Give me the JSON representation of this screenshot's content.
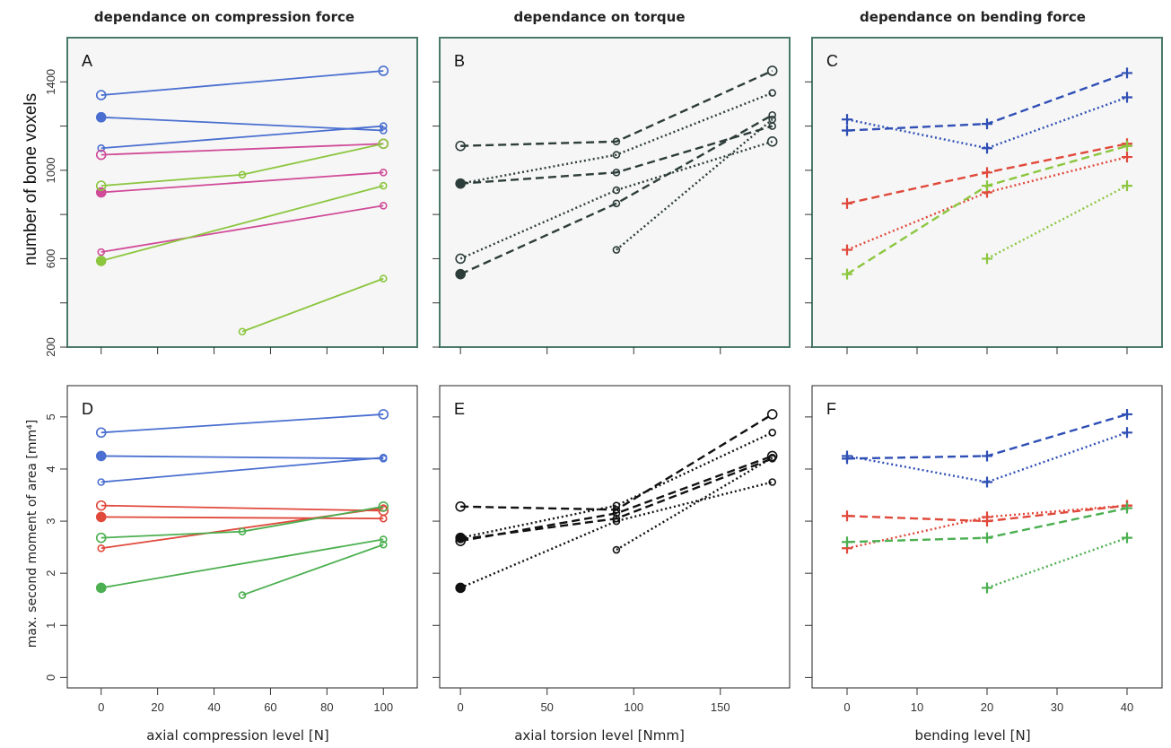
{
  "column_titles": [
    "dependance on compression force",
    "dependance on torque",
    "dependance on bending force"
  ],
  "x_axis_titles": [
    "axial compression level [N]",
    "axial torsion level [Nmm]",
    "bending level [N]"
  ],
  "y_axis_titles": [
    "number of bone voxels",
    "max. second moment of area [mm⁴]"
  ],
  "colors": {
    "blue": "#4a6fd0",
    "pink": "#d04b98",
    "lightgreen": "#8cc63f",
    "darkgray": "#2d3d3a",
    "red": "#e0493b",
    "green": "#4caf50",
    "black": "#111111",
    "navy": "#2f4fb5"
  },
  "chart_data": [
    {
      "panel": "A",
      "type": "line",
      "ylim": [
        200,
        1600
      ],
      "yticks": [
        200,
        600,
        1000,
        1400
      ],
      "xlim": [
        -12,
        112
      ],
      "xticks": [
        0,
        20,
        40,
        60,
        80,
        100
      ],
      "series": [
        {
          "color": "blue",
          "points": [
            [
              0,
              1340
            ],
            [
              100,
              1450
            ]
          ]
        },
        {
          "color": "blue",
          "points": [
            [
              0,
              1240
            ],
            [
              100,
              1180
            ]
          ]
        },
        {
          "color": "blue",
          "points": [
            [
              0,
              1100
            ],
            [
              100,
              1200
            ]
          ]
        },
        {
          "color": "pink",
          "points": [
            [
              0,
              1070
            ],
            [
              100,
              1120
            ]
          ]
        },
        {
          "color": "pink",
          "points": [
            [
              0,
              900
            ],
            [
              100,
              990
            ]
          ]
        },
        {
          "color": "pink",
          "points": [
            [
              0,
              630
            ],
            [
              100,
              840
            ]
          ]
        },
        {
          "color": "lightgreen",
          "points": [
            [
              0,
              930
            ],
            [
              50,
              980
            ],
            [
              100,
              1120
            ]
          ]
        },
        {
          "color": "lightgreen",
          "points": [
            [
              0,
              590
            ],
            [
              100,
              930
            ]
          ]
        },
        {
          "color": "lightgreen",
          "points": [
            [
              50,
              270
            ],
            [
              100,
              510
            ]
          ]
        }
      ]
    },
    {
      "panel": "B",
      "type": "line",
      "ylim": [
        200,
        1600
      ],
      "xlim": [
        -12,
        190
      ],
      "xticks": [
        0,
        50,
        100,
        150
      ],
      "series": [
        {
          "color": "darkgray",
          "dash": "dashed",
          "points": [
            [
              0,
              1110
            ],
            [
              90,
              1130
            ],
            [
              180,
              1450
            ]
          ]
        },
        {
          "color": "darkgray",
          "dash": "dotted",
          "points": [
            [
              0,
              940
            ],
            [
              90,
              1070
            ],
            [
              180,
              1350
            ]
          ]
        },
        {
          "color": "darkgray",
          "dash": "dashed",
          "points": [
            [
              0,
              940
            ],
            [
              90,
              990
            ],
            [
              180,
              1200
            ]
          ]
        },
        {
          "color": "darkgray",
          "dash": "dotted",
          "points": [
            [
              0,
              600
            ],
            [
              90,
              910
            ],
            [
              180,
              1130
            ]
          ]
        },
        {
          "color": "darkgray",
          "dash": "dashed",
          "points": [
            [
              0,
              530
            ],
            [
              90,
              850
            ],
            [
              180,
              1250
            ]
          ]
        },
        {
          "color": "darkgray",
          "dash": "dotted",
          "points": [
            [
              90,
              640
            ],
            [
              180,
              1230
            ]
          ]
        }
      ]
    },
    {
      "panel": "C",
      "type": "line",
      "ylim": [
        200,
        1600
      ],
      "xlim": [
        -5,
        45
      ],
      "xticks": [
        0,
        10,
        20,
        30,
        40
      ],
      "series": [
        {
          "color": "navy",
          "dash": "dashed",
          "points": [
            [
              0,
              1180
            ],
            [
              20,
              1210
            ],
            [
              40,
              1440
            ]
          ]
        },
        {
          "color": "navy",
          "dash": "dotted",
          "points": [
            [
              0,
              1230
            ],
            [
              20,
              1100
            ],
            [
              40,
              1330
            ]
          ]
        },
        {
          "color": "red",
          "dash": "dashed",
          "points": [
            [
              0,
              850
            ],
            [
              20,
              990
            ],
            [
              40,
              1120
            ]
          ]
        },
        {
          "color": "red",
          "dash": "dotted",
          "points": [
            [
              0,
              640
            ],
            [
              20,
              900
            ],
            [
              40,
              1060
            ]
          ]
        },
        {
          "color": "lightgreen",
          "dash": "dashed",
          "points": [
            [
              0,
              530
            ],
            [
              20,
              930
            ],
            [
              40,
              1110
            ]
          ]
        },
        {
          "color": "lightgreen",
          "dash": "dotted",
          "points": [
            [
              20,
              600
            ],
            [
              40,
              930
            ]
          ]
        }
      ]
    },
    {
      "panel": "D",
      "type": "line",
      "ylim": [
        -0.2,
        5.6
      ],
      "yticks": [
        0,
        1,
        2,
        3,
        4,
        5
      ],
      "xlim": [
        -12,
        112
      ],
      "xticks": [
        0,
        20,
        40,
        60,
        80,
        100
      ],
      "series": [
        {
          "color": "blue",
          "points": [
            [
              0,
              4.7
            ],
            [
              100,
              5.05
            ]
          ]
        },
        {
          "color": "blue",
          "points": [
            [
              0,
              4.25
            ],
            [
              100,
              4.2
            ]
          ]
        },
        {
          "color": "blue",
          "points": [
            [
              0,
              3.75
            ],
            [
              100,
              4.22
            ]
          ]
        },
        {
          "color": "red",
          "points": [
            [
              0,
              3.3
            ],
            [
              100,
              3.2
            ]
          ]
        },
        {
          "color": "red",
          "points": [
            [
              0,
              3.08
            ],
            [
              100,
              3.05
            ]
          ]
        },
        {
          "color": "red",
          "points": [
            [
              0,
              2.48
            ],
            [
              100,
              3.25
            ]
          ]
        },
        {
          "color": "green",
          "points": [
            [
              0,
              2.68
            ],
            [
              50,
              2.8
            ],
            [
              100,
              3.28
            ]
          ]
        },
        {
          "color": "green",
          "points": [
            [
              0,
              1.72
            ],
            [
              100,
              2.65
            ]
          ]
        },
        {
          "color": "green",
          "points": [
            [
              50,
              1.58
            ],
            [
              100,
              2.55
            ]
          ]
        }
      ]
    },
    {
      "panel": "E",
      "type": "line",
      "ylim": [
        -0.2,
        5.6
      ],
      "xlim": [
        -12,
        190
      ],
      "xticks": [
        0,
        50,
        100,
        150
      ],
      "series": [
        {
          "color": "black",
          "dash": "dashed",
          "points": [
            [
              0,
              3.28
            ],
            [
              90,
              3.22
            ],
            [
              180,
              5.05
            ]
          ]
        },
        {
          "color": "black",
          "dash": "dotted",
          "points": [
            [
              0,
              2.68
            ],
            [
              90,
              3.3
            ],
            [
              180,
              4.7
            ]
          ]
        },
        {
          "color": "black",
          "dash": "dashed",
          "points": [
            [
              0,
              2.65
            ],
            [
              90,
              3.05
            ],
            [
              180,
              4.2
            ]
          ]
        },
        {
          "color": "black",
          "dash": "dashed",
          "points": [
            [
              0,
              2.62
            ],
            [
              90,
              3.15
            ],
            [
              180,
              4.25
            ]
          ]
        },
        {
          "color": "black",
          "dash": "dotted",
          "points": [
            [
              0,
              1.72
            ],
            [
              90,
              3.0
            ],
            [
              180,
              3.75
            ]
          ]
        },
        {
          "color": "black",
          "dash": "dotted",
          "points": [
            [
              90,
              2.45
            ],
            [
              180,
              4.22
            ]
          ]
        }
      ]
    },
    {
      "panel": "F",
      "type": "line",
      "ylim": [
        -0.2,
        5.6
      ],
      "xlim": [
        -5,
        45
      ],
      "xticks": [
        0,
        10,
        20,
        30,
        40
      ],
      "series": [
        {
          "color": "navy",
          "dash": "dashed",
          "points": [
            [
              0,
              4.2
            ],
            [
              20,
              4.25
            ],
            [
              40,
              5.05
            ]
          ]
        },
        {
          "color": "navy",
          "dash": "dotted",
          "points": [
            [
              0,
              4.25
            ],
            [
              20,
              3.75
            ],
            [
              40,
              4.7
            ]
          ]
        },
        {
          "color": "red",
          "dash": "dashed",
          "points": [
            [
              0,
              3.1
            ],
            [
              20,
              3.0
            ],
            [
              40,
              3.3
            ]
          ]
        },
        {
          "color": "red",
          "dash": "dotted",
          "points": [
            [
              0,
              2.48
            ],
            [
              20,
              3.08
            ],
            [
              40,
              3.3
            ]
          ]
        },
        {
          "color": "green",
          "dash": "dashed",
          "points": [
            [
              0,
              2.6
            ],
            [
              20,
              2.68
            ],
            [
              40,
              3.25
            ]
          ]
        },
        {
          "color": "green",
          "dash": "dotted",
          "points": [
            [
              20,
              1.72
            ],
            [
              40,
              2.68
            ]
          ]
        }
      ]
    }
  ]
}
